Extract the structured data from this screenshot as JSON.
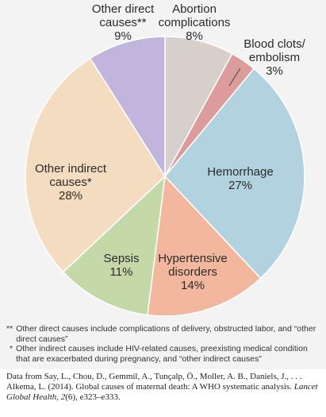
{
  "chart_data": {
    "type": "pie",
    "slices": [
      {
        "label": "Abortion complications",
        "label_lines": [
          "Abortion",
          "complications"
        ],
        "pct_text": "8%",
        "value": 8,
        "color": "#d7cfc9"
      },
      {
        "label": "Blood clots/ embolism",
        "label_lines": [
          "Blood clots/",
          "embolism"
        ],
        "pct_text": "3%",
        "value": 3,
        "color": "#dc9c9b"
      },
      {
        "label": "Hemorrhage",
        "label_lines": [
          "Hemorrhage"
        ],
        "pct_text": "27%",
        "value": 27,
        "color": "#b3d2df"
      },
      {
        "label": "Hypertensive disorders",
        "label_lines": [
          "Hypertensive",
          "disorders"
        ],
        "pct_text": "14%",
        "value": 14,
        "color": "#f2b79c"
      },
      {
        "label": "Sepsis",
        "label_lines": [
          "Sepsis"
        ],
        "pct_text": "11%",
        "value": 11,
        "color": "#c5d9a8"
      },
      {
        "label": "Other indirect causes*",
        "label_lines": [
          "Other indirect",
          "causes*"
        ],
        "pct_text": "28%",
        "value": 28,
        "color": "#f3dcbf"
      },
      {
        "label": "Other direct causes**",
        "label_lines": [
          "Other direct",
          "causes**"
        ],
        "pct_text": "9%",
        "value": 9,
        "color": "#c1b4dd"
      }
    ]
  },
  "notes": [
    {
      "mark": "**",
      "text": "Other direct causes include complications of delivery, obstructed labor, and “other direct causes”"
    },
    {
      "mark": "*",
      "text": "Other indirect causes include HIV-related causes, preexisting medical condition that are exacerbated during pregnancy, and “other indirect causes”"
    }
  ],
  "citation": {
    "text": "Data from Say, L., Chou, D., Gemmil, A., Tunçalp, Ö., Moller, A. B., Daniels, J., . . . Alkema, L. (2014). Global causes of maternal death: A WHO systematic analysis.",
    "journal": "Lancet Global Health, 2",
    "issue": "(6), e323–e333."
  },
  "colors": {
    "slice_stroke": "#ffffff",
    "figure_bg": "#f3f3f4"
  }
}
